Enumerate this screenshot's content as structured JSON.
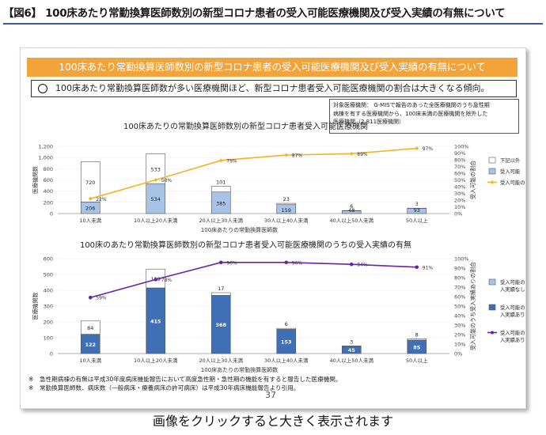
{
  "page_title": "【図6】 100床あたり常勤換算医師数別の新型コロナ患者の受入可能医療機関及び受入実績の有無について",
  "slide": {
    "banner": "100床あたり常勤換算医師数別の新型コロナ患者の受入可能医療機関及び受入実績の有無について",
    "summary": "100床あたり常勤換算医師数が多い医療機関ほど、新型コロナ患者受入可能医療機関の割合は大きくなる傾向。",
    "note_lines": [
      "対象医療機関： G-MISで報告のあった全医療機関のうち急性期",
      "病棟を有する医療機関から、100床未満の医療機関を除外した",
      "医療機関（2,811医療機関）"
    ],
    "footnotes": [
      "※　急性期病棟の有無は平成30年度病床機能報告において高度急性期・急性期の機能を有すると報告した医療機関。",
      "※　常勤換算医師数、病床数（一般病床・療養病床の許可病床）は平成30年病床機能報告より引用。"
    ],
    "page_number": "37"
  },
  "caption": "画像をクリックすると大きく表示されます",
  "colors": {
    "bar_top": "#ffffff",
    "bar_bottom": "#a9c3e6",
    "bar_dark": "#3f6fb5",
    "line1": "#f4b324",
    "line2": "#6a22a6",
    "banner": "#f2a33a"
  },
  "chart_data": [
    {
      "type": "bar",
      "stacked": true,
      "title": "100床あたりの常勤換算医師数別の新型コロナ患者受入可能医療機関",
      "xlabel": "100床あたりの常勤換算医師数",
      "ylabel": "医療機関数",
      "y2label": "受入可能の割合",
      "ylim": [
        0,
        1200
      ],
      "yticks": [
        "0",
        "200",
        "400",
        "600",
        "800",
        "1,000",
        "1,200"
      ],
      "y2lim": [
        0,
        100
      ],
      "y2ticks": [
        "0%",
        "10%",
        "20%",
        "30%",
        "40%",
        "50%",
        "60%",
        "70%",
        "80%",
        "90%",
        "100%"
      ],
      "categories": [
        "10人未満",
        "10人以上20人未満",
        "20人以上30人未満",
        "30人以上40人未満",
        "40人以上50人未満",
        "50人以上"
      ],
      "series": [
        {
          "name": "受入可能",
          "values": [
            206,
            534,
            385,
            159,
            48,
            93
          ]
        },
        {
          "name": "下記以外",
          "values": [
            720,
            533,
            101,
            23,
            6,
            3
          ]
        }
      ],
      "ratio": {
        "name": "受入可能の割合",
        "values": [
          22,
          50,
          79,
          87,
          89,
          97
        ]
      },
      "legend": "right"
    },
    {
      "type": "bar",
      "stacked": true,
      "title": "100床のあたり常勤換算医師数別の新型コロナ患者受入可能医療機関のうちの受入実績の有無",
      "xlabel": "100床あたりの常勤換算医師数",
      "ylabel": "医療機関数",
      "y2label": "受入可能のうち受入実績ありの割合",
      "ylim": [
        0,
        600
      ],
      "yticks": [
        "0",
        "100",
        "200",
        "300",
        "400",
        "500",
        "600"
      ],
      "y2lim": [
        0,
        100
      ],
      "y2ticks": [
        "0%",
        "10%",
        "20%",
        "30%",
        "40%",
        "50%",
        "60%",
        "70%",
        "80%",
        "90%",
        "100%"
      ],
      "categories": [
        "10人未満",
        "10人以上20人未満",
        "20人以上30人未満",
        "30人以上40人未満",
        "40人以上50人未満",
        "50人以上"
      ],
      "series": [
        {
          "name": "受入可能のうち受入実績あり",
          "values": [
            122,
            415,
            368,
            153,
            45,
            85
          ]
        },
        {
          "name": "受入可能のうち受入実績なし",
          "values": [
            84,
            119,
            17,
            6,
            3,
            8
          ]
        }
      ],
      "ratio": {
        "name": "受入可能のうち受入実績ありの割合",
        "values": [
          59,
          78,
          96,
          96,
          94,
          91
        ]
      },
      "legend": "right"
    }
  ]
}
